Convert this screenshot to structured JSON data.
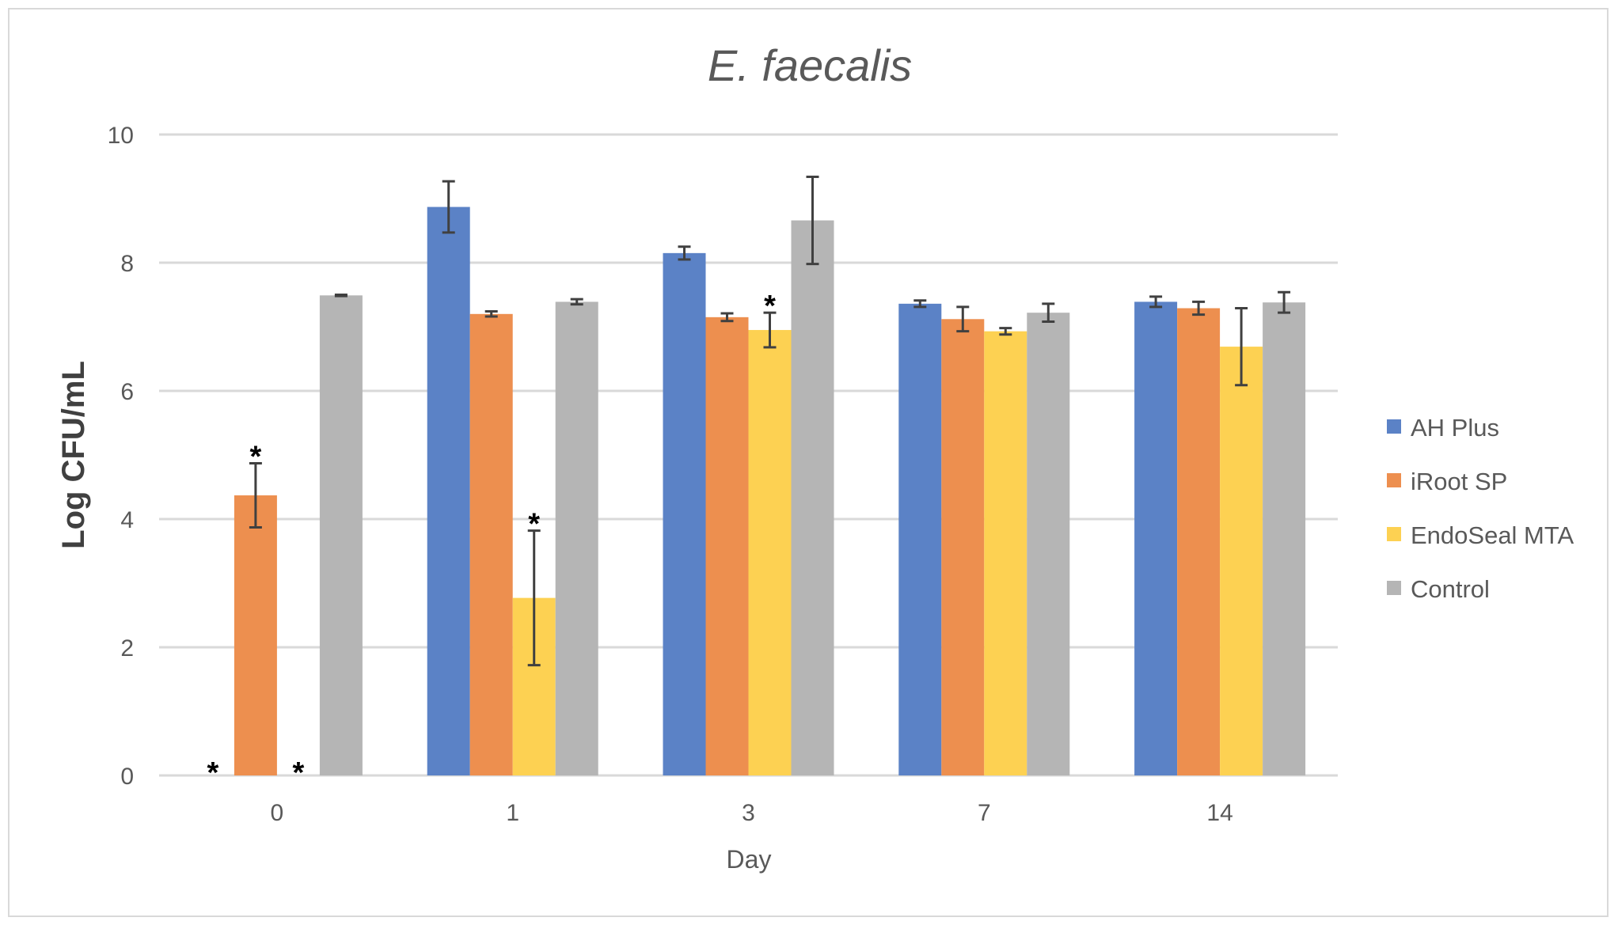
{
  "chart_data": {
    "type": "bar",
    "title": "E. faecalis",
    "xlabel": "Day",
    "ylabel": "Log CFU/mL",
    "ylim": [
      0,
      10
    ],
    "yticks": [
      0,
      2,
      4,
      6,
      8,
      10
    ],
    "grid": true,
    "legend_position": "right",
    "categories": [
      "0",
      "1",
      "3",
      "7",
      "14"
    ],
    "series": [
      {
        "name": "AH Plus",
        "color": "#5b82c6",
        "values": [
          0,
          8.87,
          8.15,
          7.36,
          7.39
        ],
        "errors": [
          0,
          0.4,
          0.1,
          0.05,
          0.08
        ]
      },
      {
        "name": "iRoot SP",
        "color": "#ed8f4f",
        "values": [
          4.37,
          7.2,
          7.15,
          7.12,
          7.29
        ],
        "errors": [
          0.5,
          0.04,
          0.06,
          0.19,
          0.1
        ]
      },
      {
        "name": "EndoSeal MTA",
        "color": "#fdd152",
        "values": [
          0,
          2.77,
          6.95,
          6.93,
          6.69
        ],
        "errors": [
          0,
          1.05,
          0.27,
          0.05,
          0.6
        ]
      },
      {
        "name": "Control",
        "color": "#b5b5b5",
        "values": [
          7.49,
          7.39,
          8.66,
          7.22,
          7.38
        ],
        "errors": [
          0.01,
          0.04,
          0.68,
          0.14,
          0.16
        ]
      }
    ],
    "annotations": [
      {
        "text": "*",
        "category": "0",
        "series": "AH Plus"
      },
      {
        "text": "*",
        "category": "0",
        "series": "iRoot SP"
      },
      {
        "text": "*",
        "category": "0",
        "series": "EndoSeal MTA"
      },
      {
        "text": "*",
        "category": "1",
        "series": "EndoSeal MTA"
      },
      {
        "text": "*",
        "category": "3",
        "series": "EndoSeal MTA"
      }
    ]
  }
}
